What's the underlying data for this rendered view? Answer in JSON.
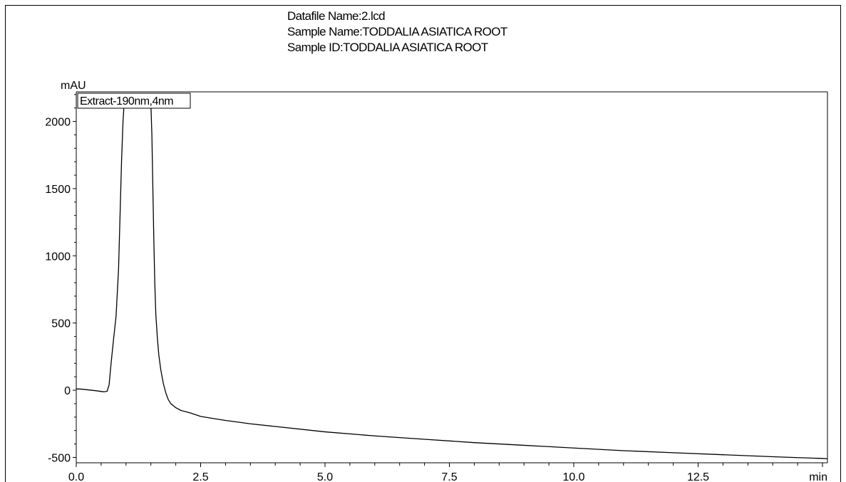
{
  "header": {
    "datafile": "Datafile Name:2.lcd",
    "sample_name": "Sample Name:TODDALIA ASIATICA ROOT",
    "sample_id": "Sample ID:TODDALIA ASIATICA ROOT"
  },
  "chart_data": {
    "type": "line",
    "title": "",
    "xlabel": "min",
    "ylabel": "mAU",
    "legend": "Extract-190nm,4nm",
    "legend_placement": "top-left",
    "grid": false,
    "xlim": [
      0,
      15.1
    ],
    "ylim": [
      -540,
      2220
    ],
    "x_ticks": [
      0.0,
      2.5,
      5.0,
      7.5,
      10.0,
      12.5
    ],
    "x_tick_labels": [
      "0.0",
      "2.5",
      "5.0",
      "7.5",
      "10.0",
      "12.5"
    ],
    "y_ticks": [
      -500,
      0,
      500,
      1000,
      1500,
      2000
    ],
    "y_tick_labels": [
      "-500",
      "0",
      "500",
      "1000",
      "1500",
      "2000"
    ],
    "series": [
      {
        "name": "Extract-190nm,4nm",
        "color": "#000000",
        "x": [
          0.0,
          0.1,
          0.25,
          0.4,
          0.55,
          0.62,
          0.66,
          0.7,
          0.75,
          0.8,
          0.85,
          0.88,
          0.91,
          0.94,
          0.96,
          0.98,
          1.0,
          1.5,
          1.52,
          1.54,
          1.56,
          1.58,
          1.6,
          1.63,
          1.66,
          1.7,
          1.75,
          1.8,
          1.85,
          1.9,
          2.0,
          2.1,
          2.2,
          2.3,
          2.5,
          2.75,
          3.0,
          3.5,
          4.0,
          5.0,
          6.0,
          7.0,
          8.0,
          9.0,
          10.0,
          11.0,
          12.0,
          13.0,
          14.0,
          15.0,
          15.1
        ],
        "y": [
          10,
          8,
          2,
          -4,
          -12,
          -8,
          40,
          200,
          380,
          550,
          900,
          1300,
          1700,
          2000,
          2120,
          2130,
          2130,
          2130,
          1900,
          1500,
          1100,
          780,
          560,
          390,
          260,
          150,
          50,
          -20,
          -70,
          -100,
          -130,
          -150,
          -160,
          -170,
          -195,
          -210,
          -225,
          -250,
          -270,
          -310,
          -340,
          -365,
          -390,
          -410,
          -430,
          -450,
          -465,
          -480,
          -495,
          -508,
          -510
        ]
      }
    ]
  }
}
